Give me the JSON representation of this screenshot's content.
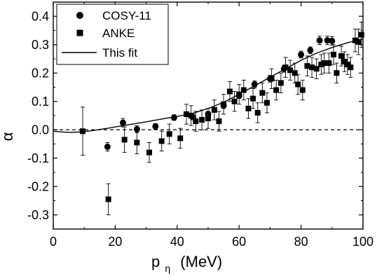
{
  "chart_data": {
    "type": "scatter",
    "title": "",
    "xlabel": "p",
    "xlabel_subscript": "η",
    "xlabel_unit": "(MeV)",
    "ylabel": "α",
    "xlim": [
      0,
      100
    ],
    "ylim": [
      -0.35,
      0.45
    ],
    "x_ticks": [
      0,
      20,
      40,
      60,
      80,
      100
    ],
    "x_tick_labels": [
      "0",
      "20",
      "40",
      "60",
      "80",
      "100"
    ],
    "y_ticks": [
      -0.3,
      -0.2,
      -0.1,
      0.0,
      0.1,
      0.2,
      0.3,
      0.4
    ],
    "y_tick_labels": [
      "-0.3",
      "-0.2",
      "-0.1",
      "0.0",
      "0.1",
      "0.2",
      "0.3",
      "0.4"
    ],
    "grid": false,
    "legend_position": "top-left",
    "zero_line": {
      "y": 0,
      "style": "dashed"
    },
    "series": [
      {
        "name": "COSY-11",
        "marker": "circle",
        "color": "#000000",
        "points": [
          {
            "x": 17.5,
            "y": -0.06,
            "err": 0.015
          },
          {
            "x": 22.5,
            "y": 0.025,
            "err": 0.015
          },
          {
            "x": 27,
            "y": 0.002,
            "err": 0.012
          },
          {
            "x": 33,
            "y": 0.012,
            "err": 0.01
          },
          {
            "x": 39,
            "y": 0.043,
            "err": 0.01
          },
          {
            "x": 45,
            "y": 0.045,
            "err": 0.01
          },
          {
            "x": 50,
            "y": 0.055,
            "err": 0.01
          },
          {
            "x": 55,
            "y": 0.085,
            "err": 0.01
          },
          {
            "x": 60,
            "y": 0.12,
            "err": 0.01
          },
          {
            "x": 65,
            "y": 0.16,
            "err": 0.012
          },
          {
            "x": 70,
            "y": 0.18,
            "err": 0.012
          },
          {
            "x": 74.5,
            "y": 0.215,
            "err": 0.012
          },
          {
            "x": 80,
            "y": 0.265,
            "err": 0.012
          },
          {
            "x": 83,
            "y": 0.28,
            "err": 0.012
          },
          {
            "x": 86,
            "y": 0.315,
            "err": 0.015
          },
          {
            "x": 88.5,
            "y": 0.315,
            "err": 0.015
          },
          {
            "x": 90,
            "y": 0.313,
            "err": 0.015
          }
        ]
      },
      {
        "name": "ANKE",
        "marker": "square",
        "color": "#000000",
        "points": [
          {
            "x": 9.5,
            "y": -0.005,
            "err": 0.085
          },
          {
            "x": 17.8,
            "y": -0.245,
            "err": 0.055
          },
          {
            "x": 23,
            "y": -0.035,
            "err": 0.045
          },
          {
            "x": 27,
            "y": -0.045,
            "err": 0.04
          },
          {
            "x": 31,
            "y": -0.08,
            "err": 0.035
          },
          {
            "x": 35,
            "y": -0.04,
            "err": 0.035
          },
          {
            "x": 37.5,
            "y": -0.015,
            "err": 0.035
          },
          {
            "x": 41,
            "y": -0.03,
            "err": 0.035
          },
          {
            "x": 43,
            "y": 0.055,
            "err": 0.035
          },
          {
            "x": 44.5,
            "y": 0.05,
            "err": 0.035
          },
          {
            "x": 46,
            "y": 0.03,
            "err": 0.035
          },
          {
            "x": 48,
            "y": 0.035,
            "err": 0.035
          },
          {
            "x": 50,
            "y": 0.04,
            "err": 0.035
          },
          {
            "x": 52,
            "y": 0.07,
            "err": 0.035
          },
          {
            "x": 53.5,
            "y": 0.03,
            "err": 0.035
          },
          {
            "x": 55,
            "y": 0.09,
            "err": 0.035
          },
          {
            "x": 57,
            "y": 0.135,
            "err": 0.035
          },
          {
            "x": 58.5,
            "y": 0.1,
            "err": 0.035
          },
          {
            "x": 60,
            "y": 0.125,
            "err": 0.035
          },
          {
            "x": 61.5,
            "y": 0.14,
            "err": 0.035
          },
          {
            "x": 63,
            "y": 0.075,
            "err": 0.035
          },
          {
            "x": 64.5,
            "y": 0.11,
            "err": 0.035
          },
          {
            "x": 66,
            "y": 0.06,
            "err": 0.035
          },
          {
            "x": 67.5,
            "y": 0.13,
            "err": 0.035
          },
          {
            "x": 69,
            "y": 0.095,
            "err": 0.035
          },
          {
            "x": 70.5,
            "y": 0.18,
            "err": 0.035
          },
          {
            "x": 72,
            "y": 0.14,
            "err": 0.035
          },
          {
            "x": 73.5,
            "y": 0.165,
            "err": 0.035
          },
          {
            "x": 75,
            "y": 0.22,
            "err": 0.035
          },
          {
            "x": 76.5,
            "y": 0.21,
            "err": 0.035
          },
          {
            "x": 78,
            "y": 0.2,
            "err": 0.035
          },
          {
            "x": 79,
            "y": 0.16,
            "err": 0.035
          },
          {
            "x": 80.5,
            "y": 0.14,
            "err": 0.035
          },
          {
            "x": 82,
            "y": 0.225,
            "err": 0.035
          },
          {
            "x": 83.5,
            "y": 0.22,
            "err": 0.035
          },
          {
            "x": 85,
            "y": 0.215,
            "err": 0.035
          },
          {
            "x": 86.5,
            "y": 0.23,
            "err": 0.035
          },
          {
            "x": 87.5,
            "y": 0.235,
            "err": 0.035
          },
          {
            "x": 89,
            "y": 0.235,
            "err": 0.035
          },
          {
            "x": 90.5,
            "y": 0.265,
            "err": 0.035
          },
          {
            "x": 91.5,
            "y": 0.2,
            "err": 0.035
          },
          {
            "x": 93,
            "y": 0.26,
            "err": 0.035
          },
          {
            "x": 94,
            "y": 0.24,
            "err": 0.035
          },
          {
            "x": 95,
            "y": 0.23,
            "err": 0.035
          },
          {
            "x": 96,
            "y": 0.22,
            "err": 0.035
          },
          {
            "x": 97.5,
            "y": 0.315,
            "err": 0.04
          },
          {
            "x": 98.5,
            "y": 0.31,
            "err": 0.045
          },
          {
            "x": 99.5,
            "y": 0.335,
            "err": 0.045
          }
        ]
      },
      {
        "name": "This fit",
        "type": "line",
        "color": "#000000",
        "x": [
          0,
          2,
          5,
          8,
          10,
          12,
          15,
          18,
          20,
          25,
          30,
          35,
          40,
          45,
          50,
          55,
          60,
          65,
          70,
          75,
          80,
          85,
          90,
          95,
          100
        ],
        "y": [
          -0.005,
          -0.007,
          -0.009,
          -0.008,
          -0.006,
          -0.004,
          0.001,
          0.006,
          0.01,
          0.019,
          0.028,
          0.038,
          0.047,
          0.058,
          0.075,
          0.097,
          0.125,
          0.155,
          0.185,
          0.215,
          0.245,
          0.27,
          0.29,
          0.307,
          0.32
        ]
      }
    ]
  }
}
